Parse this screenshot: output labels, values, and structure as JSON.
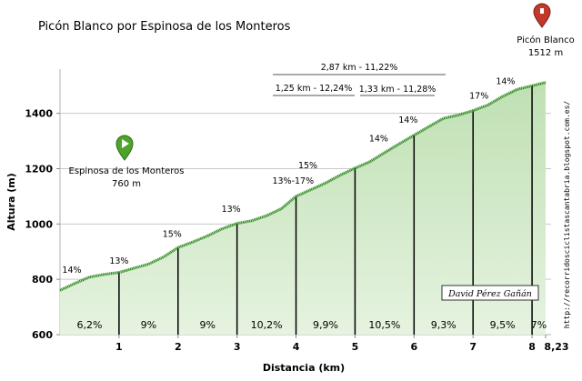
{
  "chart_data": {
    "type": "area",
    "title": "Picón Blanco por Espinosa de los Monteros",
    "xlabel": "Distancia (km)",
    "ylabel": "Altura (m)",
    "xlim": [
      0,
      8.23
    ],
    "ylim": [
      600,
      1560
    ],
    "x_ticks": [
      "1",
      "2",
      "3",
      "4",
      "5",
      "6",
      "7",
      "8",
      "8,23"
    ],
    "y_ticks": [
      "600",
      "800",
      "1000",
      "1200",
      "1400"
    ],
    "x": [
      0,
      0.25,
      0.5,
      0.75,
      1,
      1.25,
      1.5,
      1.75,
      2,
      2.25,
      2.5,
      2.75,
      3,
      3.25,
      3.5,
      3.75,
      4,
      4.25,
      4.5,
      4.75,
      5,
      5.25,
      5.5,
      5.75,
      6,
      6.25,
      6.5,
      6.75,
      7,
      7.25,
      7.5,
      7.75,
      8,
      8.23
    ],
    "y": [
      760,
      785,
      808,
      818,
      825,
      840,
      855,
      880,
      915,
      935,
      957,
      983,
      1002,
      1012,
      1030,
      1055,
      1100,
      1124,
      1148,
      1177,
      1202,
      1225,
      1258,
      1290,
      1321,
      1352,
      1382,
      1394,
      1410,
      1430,
      1461,
      1487,
      1500,
      1512
    ],
    "segment_grades": [
      "6,2%",
      "9%",
      "9%",
      "10,2%",
      "9,9%",
      "10,5%",
      "9,3%",
      "9,5%",
      "7%"
    ],
    "grade_labels": [
      {
        "x": 0.2,
        "y": 810,
        "text": "14%"
      },
      {
        "x": 1.0,
        "y": 843,
        "text": "13%"
      },
      {
        "x": 1.9,
        "y": 940,
        "text": "15%"
      },
      {
        "x": 2.9,
        "y": 1030,
        "text": "13%"
      },
      {
        "x": 3.95,
        "y": 1133,
        "text": "13%-17%"
      },
      {
        "x": 4.2,
        "y": 1188,
        "text": "15%"
      },
      {
        "x": 5.9,
        "y": 1353,
        "text": "14%"
      },
      {
        "x": 6.0,
        "y": 1330,
        "text": ""
      },
      {
        "x": 5.4,
        "y": 1285,
        "text": "14%"
      },
      {
        "x": 7.1,
        "y": 1440,
        "text": "17%"
      },
      {
        "x": 7.55,
        "y": 1492,
        "text": "14%"
      }
    ],
    "annotations": {
      "span_total": "2,87 km - 11,22%",
      "span_a": "1,25 km - 12,24%",
      "span_b": "1,33 km - 11,28%"
    },
    "start": {
      "name": "Espinosa de los Monteros",
      "altitude": "760 m"
    },
    "summit": {
      "name": "Picón Blanco",
      "altitude": "1512 m"
    },
    "credit_url": "http://recorridosciclistascantabria.blogspot.com.es/",
    "author": "David Pérez Gañán",
    "colors": {
      "line": "#2e8b1f",
      "fill": "#d3ebcb",
      "fill_top": "#c4e3b9",
      "start_marker": "#4fa32b",
      "summit_marker": "#c0392b"
    }
  }
}
